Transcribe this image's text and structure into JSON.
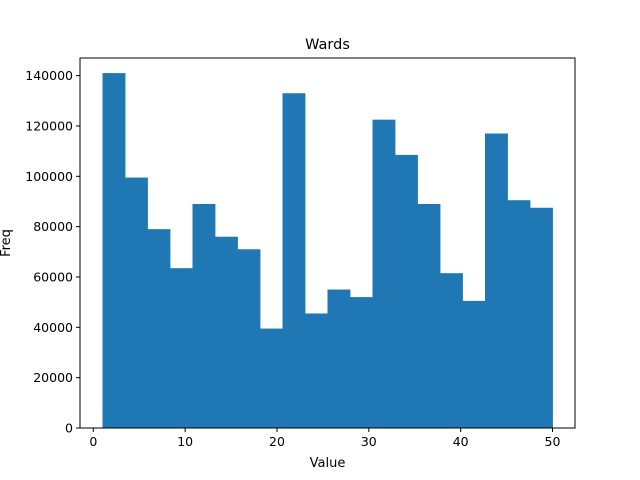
{
  "chart_data": {
    "type": "bar",
    "title": "Wards",
    "xlabel": "Value",
    "ylabel": "Freq",
    "bar_color": "#1f77b4",
    "xlim": [
      -1.45,
      52.45
    ],
    "ylim": [
      0,
      147000
    ],
    "xticks": [
      0,
      10,
      20,
      30,
      40,
      50
    ],
    "yticks": [
      0,
      20000,
      40000,
      60000,
      80000,
      100000,
      120000,
      140000
    ],
    "bins": [
      {
        "start": 1.0,
        "end": 3.45,
        "value": 141000
      },
      {
        "start": 3.45,
        "end": 5.9,
        "value": 99500
      },
      {
        "start": 5.9,
        "end": 8.35,
        "value": 79000
      },
      {
        "start": 8.35,
        "end": 10.8,
        "value": 63500
      },
      {
        "start": 10.8,
        "end": 13.25,
        "value": 89000
      },
      {
        "start": 13.25,
        "end": 15.7,
        "value": 76000
      },
      {
        "start": 15.7,
        "end": 18.15,
        "value": 71000
      },
      {
        "start": 18.15,
        "end": 20.6,
        "value": 39500
      },
      {
        "start": 20.6,
        "end": 23.05,
        "value": 133000
      },
      {
        "start": 23.05,
        "end": 25.5,
        "value": 45500
      },
      {
        "start": 25.5,
        "end": 27.95,
        "value": 55000
      },
      {
        "start": 27.95,
        "end": 30.4,
        "value": 52000
      },
      {
        "start": 30.4,
        "end": 32.85,
        "value": 122500
      },
      {
        "start": 32.85,
        "end": 35.3,
        "value": 108500
      },
      {
        "start": 35.3,
        "end": 37.75,
        "value": 89000
      },
      {
        "start": 37.75,
        "end": 40.2,
        "value": 61500
      },
      {
        "start": 40.2,
        "end": 42.65,
        "value": 50500
      },
      {
        "start": 42.65,
        "end": 45.1,
        "value": 117000
      },
      {
        "start": 45.1,
        "end": 47.55,
        "value": 90500
      },
      {
        "start": 47.55,
        "end": 50.0,
        "value": 87500
      }
    ]
  }
}
